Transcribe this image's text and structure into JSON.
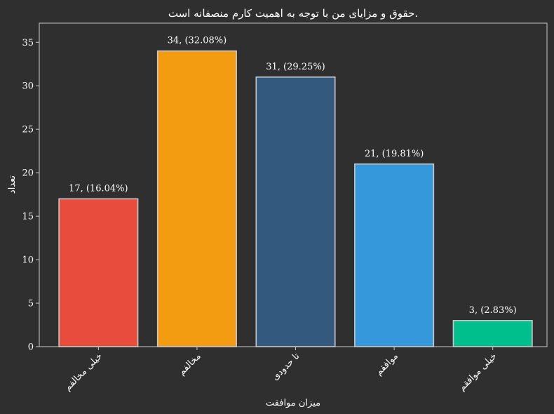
{
  "chart_data": {
    "type": "bar",
    "title": "حقوق و مزایای من با توجه به اهمیت کارم منصفانه است.",
    "xlabel": "میزان موافقت",
    "ylabel": "تعداد",
    "categories": [
      "خیلی مخالفم",
      "مخالفم",
      "تا حدودی",
      "موافقم",
      "خیلی موافقم"
    ],
    "values": [
      17,
      34,
      31,
      21,
      3
    ],
    "data_labels": [
      "17, (16.04%)",
      "34, (32.08%)",
      "31, (29.25%)",
      "21, (19.81%)",
      "3, (2.83%)"
    ],
    "colors": [
      "#e74c3c",
      "#f39c12",
      "#34597e",
      "#3498db",
      "#00bf8c"
    ],
    "ylim": [
      0,
      37.2
    ],
    "yticks": [
      0,
      5,
      10,
      15,
      20,
      25,
      30,
      35
    ],
    "grid": false,
    "background": "#2f2f2f"
  }
}
